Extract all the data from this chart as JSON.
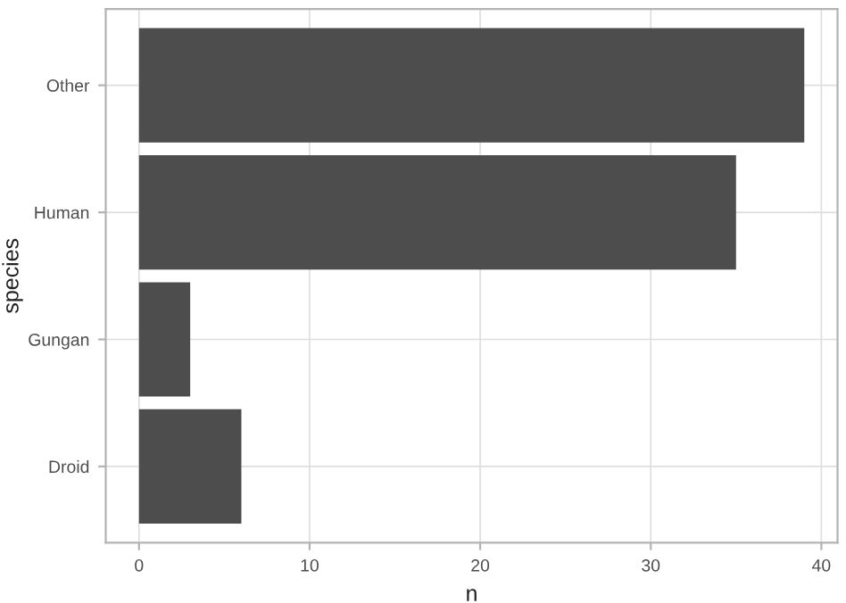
{
  "chart_data": {
    "type": "bar",
    "orientation": "horizontal",
    "xlabel": "n",
    "ylabel": "species",
    "categories": [
      "Other",
      "Human",
      "Gungan",
      "Droid"
    ],
    "values": [
      39,
      35,
      3,
      6
    ],
    "color": "#4d4d4d",
    "xlim": [
      -1.95,
      40.95
    ],
    "xticks": [
      0,
      10,
      20,
      30,
      40
    ],
    "grid": true
  }
}
